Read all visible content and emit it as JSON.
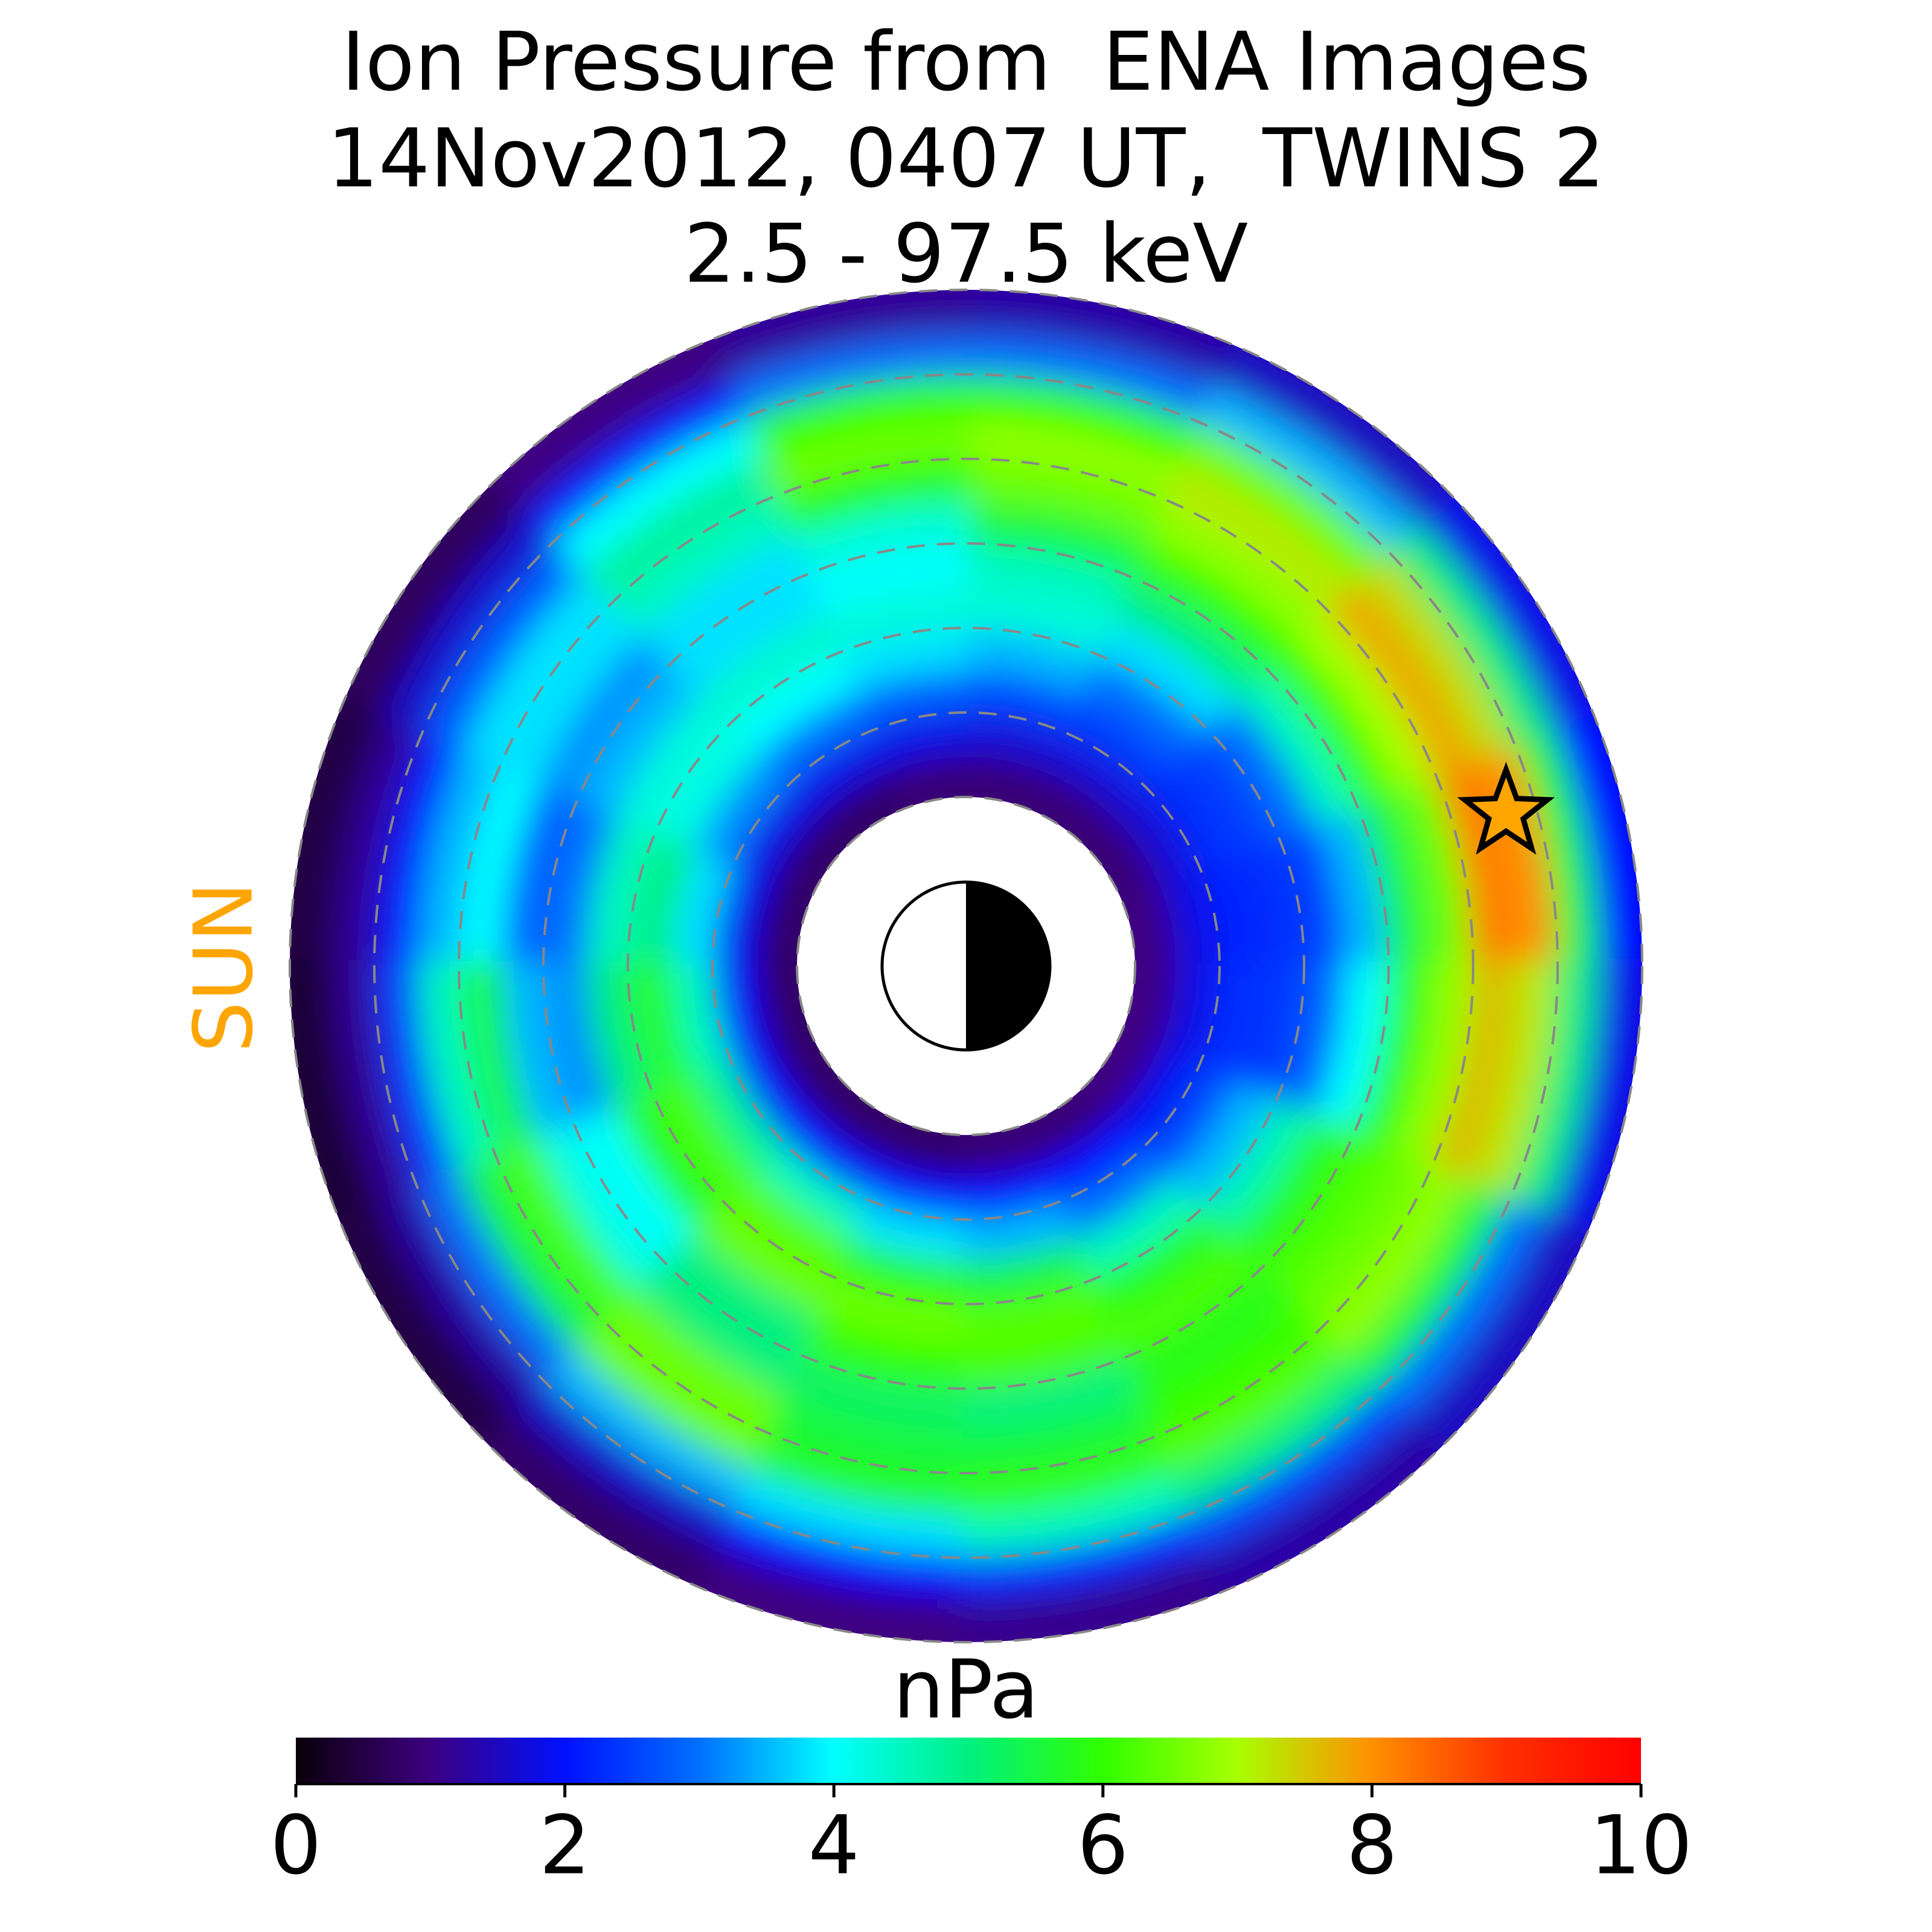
{
  "chart_data": {
    "type": "polar-heatmap",
    "title": [
      "Ion Pressure from  ENA Images",
      "14Nov2012, 0407 UT,  TWINS 2",
      "2.5 - 97.5 keV"
    ],
    "annotation": "SUN",
    "annotation_color": "#ffa500",
    "colorbar_label": "nPa",
    "clim": [
      0,
      10
    ],
    "cticks": [
      0,
      2,
      4,
      6,
      8,
      10
    ],
    "colormap": [
      "#0a000a",
      "#3c0080",
      "#0010ff",
      "#0070ff",
      "#00ffff",
      "#00f080",
      "#30ff00",
      "#a8ff00",
      "#ff9000",
      "#ff3000",
      "#ff0000"
    ],
    "rbins": [
      2,
      2.5,
      3,
      3.5,
      4,
      4.5,
      5,
      5.5,
      6,
      6.5,
      7,
      7.5,
      8
    ],
    "theta_bins": [
      0,
      22.5,
      45,
      67.5,
      90,
      112.5,
      135,
      157.5,
      180,
      202.5,
      225,
      247.5,
      270,
      292.5,
      315,
      337.5,
      360
    ],
    "values": [
      [
        1.0,
        1.8,
        2.2,
        2.3,
        2.5,
        3.5,
        5.5,
        6.5,
        8.2,
        8.0,
        5.5,
        2.0
      ],
      [
        0.9,
        1.7,
        2.3,
        2.5,
        3.0,
        4.5,
        6.0,
        7.0,
        7.8,
        7.3,
        5.0,
        1.8
      ],
      [
        0.9,
        1.7,
        2.5,
        3.0,
        3.8,
        5.0,
        6.0,
        6.8,
        7.2,
        6.5,
        3.5,
        1.5
      ],
      [
        0.9,
        1.7,
        2.6,
        3.5,
        4.3,
        4.5,
        5.5,
        6.5,
        6.8,
        6.0,
        3.0,
        1.3
      ],
      [
        0.9,
        1.8,
        2.8,
        3.8,
        4.3,
        4.0,
        4.3,
        5.8,
        6.5,
        6.0,
        3.0,
        1.2
      ],
      [
        0.8,
        1.8,
        3.0,
        4.0,
        4.4,
        3.8,
        3.8,
        4.5,
        4.8,
        4.0,
        2.2,
        1.0
      ],
      [
        0.8,
        1.8,
        3.2,
        4.2,
        4.3,
        3.5,
        3.2,
        3.8,
        3.8,
        2.8,
        1.6,
        0.7
      ],
      [
        0.8,
        1.9,
        3.8,
        5.0,
        4.5,
        3.0,
        2.8,
        4.0,
        3.5,
        2.2,
        1.2,
        0.5
      ],
      [
        0.8,
        2.0,
        4.5,
        5.8,
        5.0,
        3.2,
        3.5,
        5.5,
        4.5,
        2.5,
        1.2,
        0.4
      ],
      [
        0.8,
        2.0,
        4.8,
        6.2,
        5.8,
        4.0,
        4.2,
        6.2,
        5.5,
        3.0,
        1.3,
        0.5
      ],
      [
        0.8,
        2.0,
        4.5,
        6.3,
        6.5,
        5.0,
        5.0,
        6.5,
        6.5,
        3.5,
        1.6,
        0.8
      ],
      [
        0.8,
        2.0,
        3.8,
        5.8,
        6.5,
        6.0,
        5.2,
        5.5,
        5.8,
        3.8,
        2.0,
        1.0
      ],
      [
        0.9,
        2.0,
        3.5,
        5.5,
        6.3,
        6.2,
        5.0,
        5.5,
        6.0,
        4.5,
        2.3,
        1.1
      ],
      [
        0.9,
        2.0,
        3.0,
        4.5,
        5.8,
        6.2,
        5.8,
        6.0,
        6.3,
        5.0,
        2.6,
        1.3
      ],
      [
        1.0,
        1.9,
        2.6,
        3.5,
        4.6,
        5.8,
        6.2,
        6.5,
        6.8,
        5.5,
        3.0,
        1.5
      ],
      [
        1.0,
        1.8,
        2.3,
        2.4,
        2.8,
        4.0,
        5.8,
        6.8,
        7.6,
        7.2,
        5.0,
        1.8
      ]
    ],
    "rticks": [
      2,
      3,
      4,
      5,
      6,
      7,
      8
    ],
    "star": {
      "r": 6.64,
      "theta": 15.8,
      "color": "#ffa500"
    }
  }
}
